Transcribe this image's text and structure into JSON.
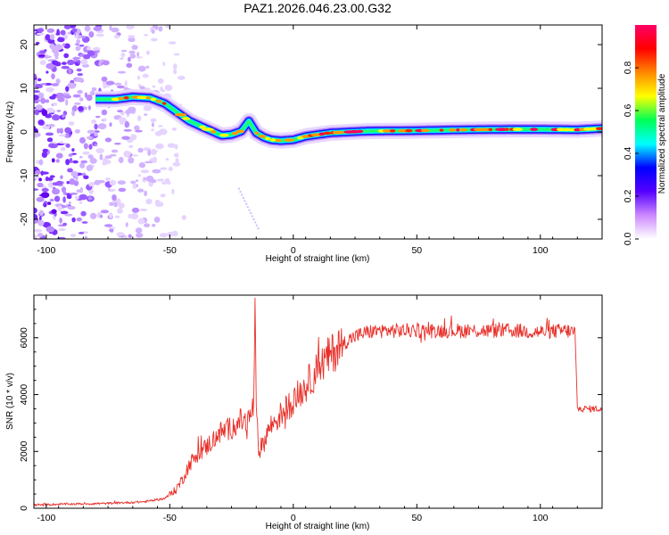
{
  "title": "PAZ1.2026.046.23.00.G32",
  "chart_data": [
    {
      "type": "heatmap",
      "name": "spectrogram",
      "xlabel": "Height of straight line (km)",
      "ylabel": "Frequency (Hz)",
      "xlim": [
        -105,
        125
      ],
      "ylim": [
        -24.5,
        24.5
      ],
      "xticks": [
        -100,
        -50,
        0,
        50,
        100
      ],
      "yticks": [
        -20,
        -10,
        0,
        10,
        20
      ],
      "colorbar": {
        "label": "Normalized spectral amplitude",
        "range": [
          0,
          1
        ],
        "ticks": [
          "0.0",
          "0.2",
          "0.4",
          "0.6",
          "0.8"
        ],
        "colors": [
          "#ffffff",
          "#cc88ff",
          "#5500ff",
          "#0000ff",
          "#00ffff",
          "#00ff55",
          "#ffff00",
          "#ff8800",
          "#ff0000",
          "#ff0066"
        ]
      },
      "ridge": {
        "description": "dominant frequency track vs height",
        "x": [
          -80,
          -72,
          -65,
          -58,
          -52,
          -47,
          -42,
          -37,
          -33,
          -29,
          -25,
          -21,
          -18,
          -15,
          -12,
          -9,
          -5,
          0,
          5,
          15,
          30,
          50,
          70,
          90,
          100,
          115,
          125
        ],
        "y": [
          7.5,
          7.5,
          8,
          7.8,
          6.5,
          4.5,
          2.5,
          1.2,
          0.2,
          -0.8,
          -0.6,
          0.2,
          2.5,
          -0.2,
          -1.2,
          -1.8,
          -2,
          -1.8,
          -1,
          -0.2,
          0.2,
          0.3,
          0.5,
          0.6,
          0.6,
          0.5,
          0.8
        ]
      },
      "noise_region": {
        "x_from": -105,
        "x_to": -50
      }
    },
    {
      "type": "line",
      "name": "snr",
      "xlabel": "Height of straight line (km)",
      "ylabel": "SNR (10 * v/v)",
      "xlim": [
        -105,
        125
      ],
      "ylim": [
        0,
        7500
      ],
      "xticks": [
        -100,
        -50,
        0,
        50,
        100
      ],
      "yticks": [
        0,
        2000,
        4000,
        6000
      ],
      "color": "#e8302a",
      "series": [
        {
          "name": "SNR",
          "x": [
            -105,
            -90,
            -75,
            -60,
            -52,
            -48,
            -45,
            -42,
            -39,
            -36,
            -33,
            -30,
            -27,
            -24,
            -21,
            -19,
            -17,
            -16,
            -15.5,
            -15,
            -14,
            -12,
            -10,
            -7,
            -4,
            0,
            5,
            10,
            15,
            20,
            25,
            30,
            35,
            40,
            50,
            60,
            70,
            80,
            90,
            100,
            110,
            114,
            115,
            116,
            120,
            125
          ],
          "y": [
            120,
            150,
            170,
            230,
            350,
            600,
            1000,
            1550,
            1900,
            2100,
            2350,
            2650,
            2750,
            2900,
            3100,
            3000,
            3300,
            3700,
            7400,
            3200,
            2000,
            2300,
            2800,
            3100,
            3400,
            3800,
            4300,
            4900,
            5400,
            5800,
            6050,
            6200,
            6250,
            6250,
            6250,
            6250,
            6250,
            6250,
            6250,
            6200,
            6250,
            6200,
            3500,
            3500,
            3500,
            3500
          ]
        }
      ]
    }
  ]
}
